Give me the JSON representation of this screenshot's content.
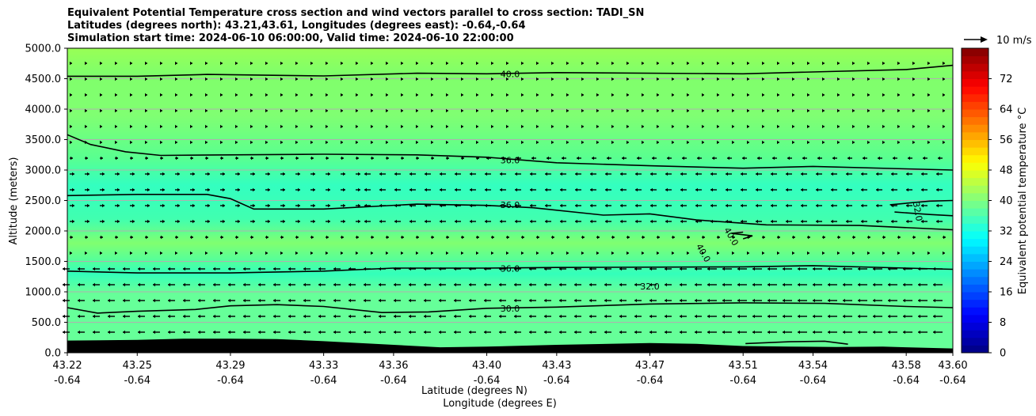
{
  "title_lines": [
    "Equivalent Potential Temperature cross section and wind vectors parallel to cross section: TADI_SN",
    "Latitudes (degrees north): 43.21,43.61, Longitudes (degrees east): -0.64,-0.64",
    "Simulation start time: 2024-06-10 06:00:00, Valid time: 2024-06-10 22:00:00"
  ],
  "chart_data": {
    "type": "contour",
    "ylabel": "Altitude (meters)",
    "xlabel_lat": "Latitude (degrees N)",
    "xlabel_lon": "Longitude (degrees E)",
    "ylim": [
      0,
      5000
    ],
    "y_ticks": [
      "0.0",
      "500.0",
      "1000.0",
      "1500.0",
      "2000.0",
      "2500.0",
      "3000.0",
      "3500.0",
      "4000.0",
      "4500.0",
      "5000.0"
    ],
    "x_ticks_lat": [
      "43.22",
      "43.25",
      "43.29",
      "43.33",
      "43.36",
      "43.40",
      "43.43",
      "43.47",
      "43.51",
      "43.54",
      "43.58",
      "43.60"
    ],
    "x_ticks_lon": [
      "-0.64",
      "-0.64",
      "-0.64",
      "-0.64",
      "-0.64",
      "-0.64",
      "-0.64",
      "-0.64",
      "-0.64",
      "-0.64",
      "-0.64",
      "-0.64"
    ],
    "x_tick_values": [
      43.22,
      43.25,
      43.29,
      43.33,
      43.36,
      43.4,
      43.43,
      43.47,
      43.51,
      43.54,
      43.58,
      43.6
    ],
    "xlim": [
      43.22,
      43.6
    ],
    "grid": "horizontal",
    "quiver_key_label": "10 m/s",
    "colorbar": {
      "label": "Equivalent potential temperature °C",
      "range": [
        0,
        80
      ],
      "ticks": [
        "0",
        "8",
        "16",
        "24",
        "32",
        "40",
        "48",
        "56",
        "64",
        "72"
      ],
      "tick_values": [
        0,
        8,
        16,
        24,
        32,
        40,
        48,
        56,
        64,
        72
      ],
      "colormap": "jet"
    },
    "contour_labels": [
      {
        "text": "40.0",
        "x": 43.41,
        "y": 4580
      },
      {
        "text": "36.0",
        "x": 43.41,
        "y": 3160
      },
      {
        "text": "36.0",
        "x": 43.41,
        "y": 2430
      },
      {
        "text": "36.0",
        "x": 43.41,
        "y": 1380
      },
      {
        "text": "30.0",
        "x": 43.41,
        "y": 730
      },
      {
        "text": "32.0",
        "x": 43.47,
        "y": 1090
      },
      {
        "text": "40.0",
        "x": 43.505,
        "y": 1910
      },
      {
        "text": "40.0",
        "x": 43.493,
        "y": 1640
      },
      {
        "text": "32.0",
        "x": 43.585,
        "y": 2320
      }
    ],
    "contour_lines": [
      {
        "level": 40,
        "points": [
          [
            43.22,
            4540
          ],
          [
            43.25,
            4540
          ],
          [
            43.28,
            4570
          ],
          [
            43.33,
            4545
          ],
          [
            43.37,
            4590
          ],
          [
            43.4,
            4580
          ],
          [
            43.43,
            4600
          ],
          [
            43.51,
            4580
          ],
          [
            43.58,
            4650
          ],
          [
            43.6,
            4720
          ]
        ]
      },
      {
        "level": 36,
        "points": [
          [
            43.22,
            3580
          ],
          [
            43.23,
            3420
          ],
          [
            43.245,
            3300
          ],
          [
            43.26,
            3240
          ],
          [
            43.29,
            3250
          ],
          [
            43.33,
            3260
          ],
          [
            43.37,
            3250
          ],
          [
            43.4,
            3210
          ],
          [
            43.43,
            3120
          ],
          [
            43.47,
            3070
          ],
          [
            43.51,
            3030
          ],
          [
            43.54,
            3060
          ],
          [
            43.58,
            3020
          ],
          [
            43.6,
            3000
          ]
        ]
      },
      {
        "level": 36,
        "points": [
          [
            43.22,
            2580
          ],
          [
            43.25,
            2600
          ],
          [
            43.28,
            2600
          ],
          [
            43.29,
            2530
          ],
          [
            43.3,
            2360
          ],
          [
            43.33,
            2360
          ],
          [
            43.37,
            2440
          ],
          [
            43.4,
            2420
          ],
          [
            43.42,
            2380
          ],
          [
            43.45,
            2260
          ],
          [
            43.47,
            2280
          ],
          [
            43.49,
            2180
          ],
          [
            43.52,
            2100
          ],
          [
            43.56,
            2090
          ],
          [
            43.6,
            2020
          ]
        ]
      },
      {
        "level": 32,
        "points": [
          [
            43.573,
            2430
          ],
          [
            43.59,
            2490
          ],
          [
            43.6,
            2500
          ]
        ]
      },
      {
        "level": 32,
        "points": [
          [
            43.575,
            2310
          ],
          [
            43.59,
            2270
          ],
          [
            43.6,
            2250
          ]
        ]
      },
      {
        "level": 40,
        "points": [
          [
            43.51,
            1870
          ],
          [
            43.514,
            1920
          ],
          [
            43.505,
            1960
          ],
          [
            43.51,
            1980
          ]
        ]
      },
      {
        "level": 36,
        "points": [
          [
            43.22,
            1340
          ],
          [
            43.25,
            1310
          ],
          [
            43.29,
            1310
          ],
          [
            43.33,
            1340
          ],
          [
            43.36,
            1390
          ],
          [
            43.4,
            1390
          ],
          [
            43.43,
            1400
          ],
          [
            43.51,
            1410
          ],
          [
            43.54,
            1430
          ],
          [
            43.58,
            1390
          ],
          [
            43.6,
            1370
          ]
        ]
      },
      {
        "level": 30,
        "points": [
          [
            43.22,
            740
          ],
          [
            43.233,
            650
          ],
          [
            43.25,
            680
          ],
          [
            43.275,
            710
          ],
          [
            43.29,
            770
          ],
          [
            43.31,
            790
          ],
          [
            43.33,
            760
          ],
          [
            43.355,
            660
          ],
          [
            43.375,
            670
          ],
          [
            43.4,
            730
          ],
          [
            43.43,
            750
          ],
          [
            43.47,
            800
          ],
          [
            43.51,
            820
          ],
          [
            43.545,
            810
          ],
          [
            43.58,
            760
          ],
          [
            43.6,
            740
          ]
        ]
      },
      {
        "level": 32,
        "points": [
          [
            43.511,
            150
          ],
          [
            43.53,
            180
          ],
          [
            43.545,
            190
          ],
          [
            43.555,
            140
          ]
        ]
      }
    ],
    "terrain_top": [
      [
        43.22,
        200
      ],
      [
        43.25,
        210
      ],
      [
        43.27,
        230
      ],
      [
        43.29,
        230
      ],
      [
        43.31,
        225
      ],
      [
        43.33,
        190
      ],
      [
        43.36,
        130
      ],
      [
        43.38,
        90
      ],
      [
        43.4,
        100
      ],
      [
        43.43,
        130
      ],
      [
        43.47,
        160
      ],
      [
        43.49,
        145
      ],
      [
        43.51,
        110
      ],
      [
        43.53,
        100
      ],
      [
        43.55,
        95
      ],
      [
        43.57,
        100
      ],
      [
        43.58,
        90
      ],
      [
        43.6,
        70
      ]
    ]
  }
}
